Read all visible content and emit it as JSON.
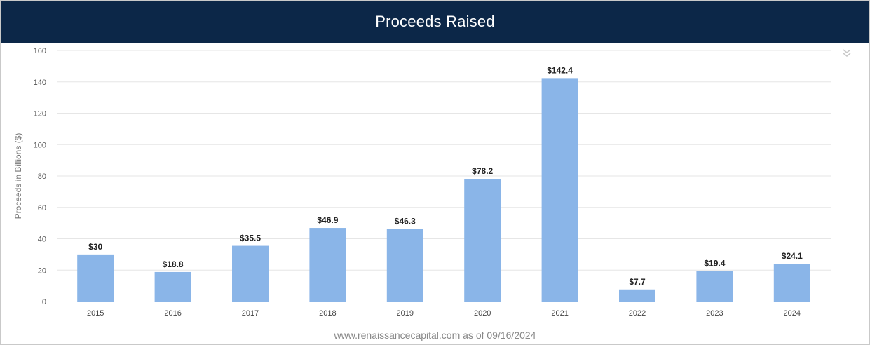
{
  "header": {
    "title": "Proceeds Raised"
  },
  "menu": {
    "icon": "double-chevron-down-icon"
  },
  "source": "www.renaissancecapital.com as of 09/16/2024",
  "colors": {
    "header_bg": "#0c2748",
    "bar": "#8ab5e8",
    "grid": "#e6e6e6"
  },
  "chart_data": {
    "type": "bar",
    "title": "Proceeds Raised",
    "xlabel": "",
    "ylabel": "Proceeds in Billions ($)",
    "ylim": [
      0,
      160
    ],
    "yticks": [
      0,
      20,
      40,
      60,
      80,
      100,
      120,
      140,
      160
    ],
    "categories": [
      "2015",
      "2016",
      "2017",
      "2018",
      "2019",
      "2020",
      "2021",
      "2022",
      "2023",
      "2024"
    ],
    "values": [
      30,
      18.8,
      35.5,
      46.9,
      46.3,
      78.2,
      142.4,
      7.7,
      19.4,
      24.1
    ],
    "data_labels": [
      "$30",
      "$18.8",
      "$35.5",
      "$46.9",
      "$46.3",
      "$78.2",
      "$142.4",
      "$7.7",
      "$19.4",
      "$24.1"
    ],
    "grid": true,
    "legend": "none"
  }
}
